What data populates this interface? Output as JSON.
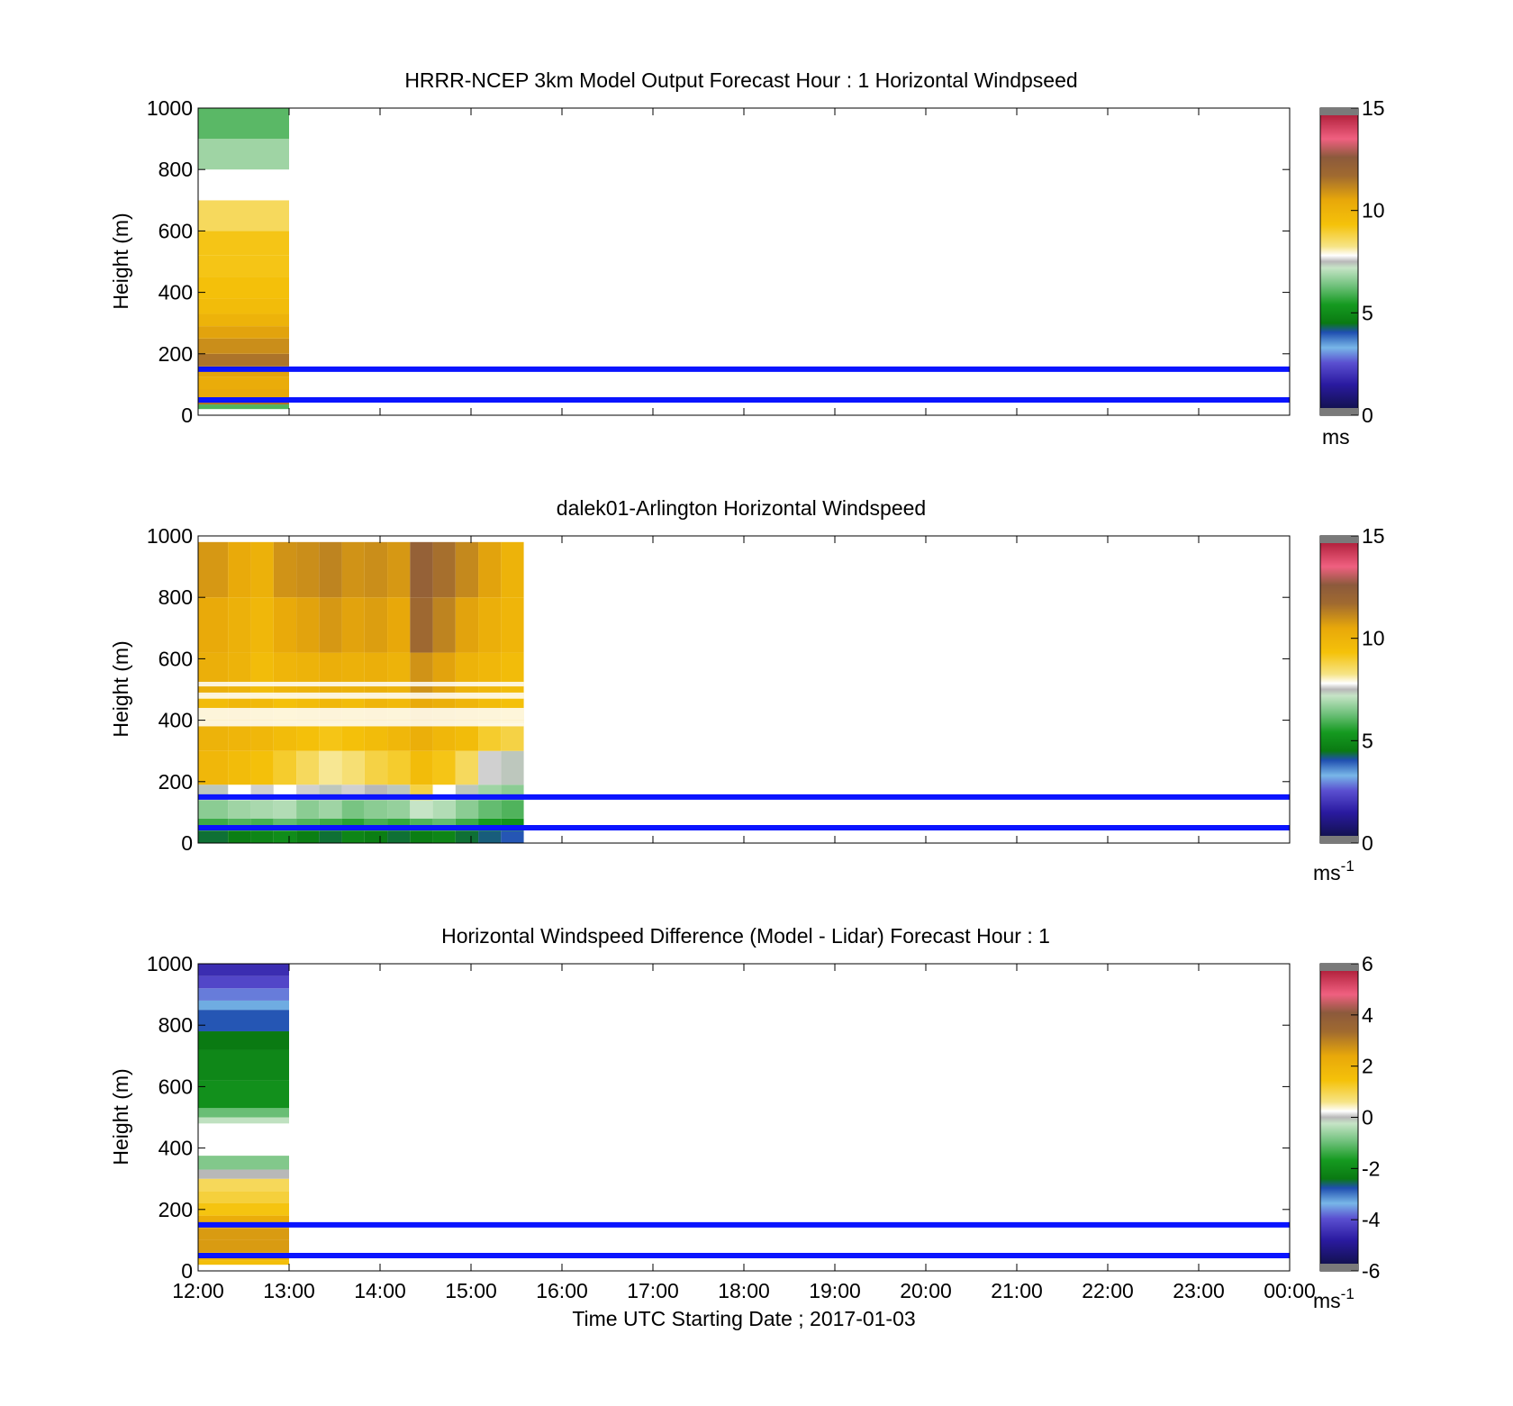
{
  "figure": {
    "xlabel": "Time UTC  Starting Date ; 2017-01-03",
    "x_ticks": [
      "12:00",
      "13:00",
      "14:00",
      "15:00",
      "16:00",
      "17:00",
      "18:00",
      "19:00",
      "20:00",
      "21:00",
      "22:00",
      "23:00",
      "00:00"
    ]
  },
  "chart_data": [
    {
      "type": "heatmap",
      "title": "HRRR-NCEP 3km Model Output   Forecast Hour : 1 Horizontal Windpseed",
      "ylabel": "Height (m)",
      "ylim": [
        0,
        1000
      ],
      "y_ticks": [
        "0",
        "200",
        "400",
        "600",
        "800",
        "1000"
      ],
      "x_range_hours": [
        12,
        24
      ],
      "colorbar": {
        "min": 0,
        "max": 15,
        "ticks": [
          "0",
          "5",
          "10",
          "15"
        ],
        "unit_label": "ms",
        "unit_sup": ""
      },
      "reference_lines_m": [
        50,
        150
      ],
      "columns": [
        {
          "t0": 12.0,
          "t1": 13.0,
          "profile": [
            [
              20,
              35,
              6.0
            ],
            [
              35,
              55,
              11.5
            ],
            [
              55,
              85,
              10.5
            ],
            [
              85,
              125,
              10.3
            ],
            [
              125,
              160,
              10.6
            ],
            [
              160,
              200,
              11.5
            ],
            [
              200,
              250,
              11.0
            ],
            [
              250,
              290,
              10.6
            ],
            [
              290,
              330,
              10.0
            ],
            [
              330,
              380,
              9.6
            ],
            [
              380,
              450,
              9.4
            ],
            [
              450,
              520,
              9.2
            ],
            [
              520,
              600,
              9.2
            ],
            [
              600,
              700,
              8.6
            ],
            [
              700,
              800,
              7.8
            ],
            [
              800,
              900,
              6.8
            ],
            [
              900,
              1000,
              6.1
            ]
          ]
        }
      ]
    },
    {
      "type": "heatmap",
      "title": "dalek01-Arlington  Horizontal Windspeed",
      "ylabel": "Height (m)",
      "ylim": [
        0,
        1000
      ],
      "y_ticks": [
        "0",
        "200",
        "400",
        "600",
        "800",
        "1000"
      ],
      "x_range_hours": [
        12,
        24
      ],
      "colorbar": {
        "min": 0,
        "max": 15,
        "ticks": [
          "0",
          "5",
          "10",
          "15"
        ],
        "unit_label": "ms",
        "unit_sup": "-1"
      },
      "reference_lines_m": [
        50,
        150
      ],
      "columns": [
        {
          "t0": 12.0,
          "t1": 12.33,
          "profile": [
            [
              0,
              40,
              4.4
            ],
            [
              40,
              80,
              5.8
            ],
            [
              80,
              140,
              6.6
            ],
            [
              140,
              190,
              7.4
            ],
            [
              190,
              300,
              9.8
            ],
            [
              300,
              390,
              10.0
            ],
            [
              390,
              480,
              9.6
            ],
            [
              480,
              620,
              10.2
            ],
            [
              620,
              800,
              10.4
            ],
            [
              800,
              980,
              10.8
            ]
          ]
        },
        {
          "t0": 12.33,
          "t1": 12.58,
          "profile": [
            [
              0,
              40,
              4.6
            ],
            [
              40,
              80,
              6.0
            ],
            [
              80,
              140,
              6.8
            ],
            [
              140,
              190,
              7.8
            ],
            [
              190,
              300,
              9.6
            ],
            [
              300,
              390,
              9.9
            ],
            [
              390,
              480,
              9.8
            ],
            [
              480,
              620,
              10.0
            ],
            [
              620,
              800,
              10.1
            ],
            [
              800,
              980,
              10.4
            ]
          ]
        },
        {
          "t0": 12.58,
          "t1": 12.83,
          "profile": [
            [
              0,
              40,
              4.8
            ],
            [
              40,
              80,
              5.9
            ],
            [
              80,
              140,
              6.9
            ],
            [
              140,
              190,
              7.6
            ],
            [
              190,
              300,
              9.4
            ],
            [
              300,
              390,
              9.8
            ],
            [
              390,
              480,
              9.7
            ],
            [
              480,
              620,
              9.6
            ],
            [
              620,
              800,
              9.8
            ],
            [
              800,
              980,
              10.1
            ]
          ]
        },
        {
          "t0": 12.83,
          "t1": 13.08,
          "profile": [
            [
              0,
              40,
              5.0
            ],
            [
              40,
              80,
              6.2
            ],
            [
              80,
              140,
              7.0
            ],
            [
              140,
              190,
              7.8
            ],
            [
              190,
              300,
              9.0
            ],
            [
              300,
              390,
              9.6
            ],
            [
              390,
              480,
              9.4
            ],
            [
              480,
              620,
              9.9
            ],
            [
              620,
              800,
              10.4
            ],
            [
              800,
              980,
              10.9
            ]
          ]
        },
        {
          "t0": 13.08,
          "t1": 13.33,
          "profile": [
            [
              0,
              40,
              4.6
            ],
            [
              40,
              80,
              6.0
            ],
            [
              80,
              140,
              6.6
            ],
            [
              140,
              190,
              7.6
            ],
            [
              190,
              300,
              8.6
            ],
            [
              300,
              390,
              9.4
            ],
            [
              390,
              480,
              9.6
            ],
            [
              480,
              620,
              10.0
            ],
            [
              620,
              800,
              10.6
            ],
            [
              800,
              980,
              11.0
            ]
          ]
        },
        {
          "t0": 13.33,
          "t1": 13.58,
          "profile": [
            [
              0,
              40,
              4.4
            ],
            [
              40,
              80,
              5.8
            ],
            [
              80,
              140,
              6.8
            ],
            [
              140,
              190,
              7.4
            ],
            [
              190,
              300,
              8.2
            ],
            [
              300,
              390,
              9.2
            ],
            [
              390,
              480,
              9.8
            ],
            [
              480,
              620,
              10.2
            ],
            [
              620,
              800,
              10.8
            ],
            [
              800,
              980,
              11.2
            ]
          ]
        },
        {
          "t0": 13.58,
          "t1": 13.83,
          "profile": [
            [
              0,
              40,
              4.8
            ],
            [
              40,
              80,
              5.6
            ],
            [
              80,
              140,
              6.4
            ],
            [
              140,
              190,
              7.6
            ],
            [
              190,
              300,
              8.4
            ],
            [
              300,
              390,
              9.4
            ],
            [
              390,
              480,
              9.6
            ],
            [
              480,
              620,
              10.1
            ],
            [
              620,
              800,
              10.6
            ],
            [
              800,
              980,
              10.9
            ]
          ]
        },
        {
          "t0": 13.83,
          "t1": 14.08,
          "profile": [
            [
              0,
              40,
              4.6
            ],
            [
              40,
              80,
              5.9
            ],
            [
              80,
              140,
              6.6
            ],
            [
              140,
              190,
              7.5
            ],
            [
              190,
              300,
              8.8
            ],
            [
              300,
              390,
              9.6
            ],
            [
              390,
              480,
              9.9
            ],
            [
              480,
              620,
              10.2
            ],
            [
              620,
              800,
              10.7
            ],
            [
              800,
              980,
              11.0
            ]
          ]
        },
        {
          "t0": 14.08,
          "t1": 14.33,
          "profile": [
            [
              0,
              40,
              4.4
            ],
            [
              40,
              80,
              5.7
            ],
            [
              80,
              140,
              6.7
            ],
            [
              140,
              190,
              7.4
            ],
            [
              190,
              300,
              9.0
            ],
            [
              300,
              390,
              9.8
            ],
            [
              390,
              480,
              9.7
            ],
            [
              480,
              620,
              10.0
            ],
            [
              620,
              800,
              10.5
            ],
            [
              800,
              980,
              10.8
            ]
          ]
        },
        {
          "t0": 14.33,
          "t1": 14.58,
          "profile": [
            [
              0,
              40,
              4.6
            ],
            [
              40,
              80,
              6.0
            ],
            [
              80,
              140,
              7.2
            ],
            [
              140,
              190,
              8.8
            ],
            [
              190,
              300,
              9.6
            ],
            [
              300,
              390,
              10.2
            ],
            [
              390,
              480,
              10.4
            ],
            [
              480,
              620,
              10.9
            ],
            [
              620,
              800,
              11.8
            ],
            [
              800,
              980,
              12.2
            ]
          ]
        },
        {
          "t0": 14.58,
          "t1": 14.83,
          "profile": [
            [
              0,
              40,
              4.8
            ],
            [
              40,
              80,
              6.2
            ],
            [
              80,
              140,
              7.0
            ],
            [
              140,
              190,
              7.8
            ],
            [
              190,
              300,
              9.2
            ],
            [
              300,
              390,
              9.8
            ],
            [
              390,
              480,
              10.2
            ],
            [
              480,
              620,
              10.6
            ],
            [
              620,
              800,
              11.2
            ],
            [
              800,
              980,
              11.6
            ]
          ]
        },
        {
          "t0": 14.83,
          "t1": 15.08,
          "profile": [
            [
              0,
              40,
              4.4
            ],
            [
              40,
              80,
              5.8
            ],
            [
              80,
              140,
              6.6
            ],
            [
              140,
              190,
              7.4
            ],
            [
              190,
              300,
              8.6
            ],
            [
              300,
              390,
              9.6
            ],
            [
              390,
              480,
              9.9
            ],
            [
              480,
              620,
              10.0
            ],
            [
              620,
              800,
              10.6
            ],
            [
              800,
              980,
              11.1
            ]
          ]
        },
        {
          "t0": 15.08,
          "t1": 15.33,
          "profile": [
            [
              0,
              40,
              4.2
            ],
            [
              40,
              80,
              5.4
            ],
            [
              80,
              140,
              6.2
            ],
            [
              140,
              190,
              6.8
            ],
            [
              190,
              300,
              7.6
            ],
            [
              300,
              390,
              9.0
            ],
            [
              390,
              480,
              9.6
            ],
            [
              480,
              620,
              9.8
            ],
            [
              620,
              800,
              10.2
            ],
            [
              800,
              980,
              10.6
            ]
          ]
        },
        {
          "t0": 15.33,
          "t1": 15.58,
          "profile": [
            [
              0,
              40,
              4.0
            ],
            [
              40,
              80,
              5.2
            ],
            [
              80,
              140,
              6.0
            ],
            [
              140,
              190,
              6.6
            ],
            [
              190,
              300,
              7.4
            ],
            [
              300,
              390,
              8.8
            ],
            [
              390,
              480,
              9.4
            ],
            [
              480,
              620,
              9.6
            ],
            [
              620,
              800,
              9.9
            ],
            [
              800,
              980,
              10.0
            ]
          ]
        }
      ],
      "missing_gaps_m": [
        [
          380,
          400
        ],
        [
          400,
          440
        ],
        [
          470,
          490
        ],
        [
          510,
          525
        ]
      ]
    },
    {
      "type": "heatmap",
      "title": "Horizontal Windspeed Difference (Model - Lidar) Forecast Hour : 1",
      "ylabel": "Height (m)",
      "ylim": [
        0,
        1000
      ],
      "y_ticks": [
        "0",
        "200",
        "400",
        "600",
        "800",
        "1000"
      ],
      "x_range_hours": [
        12,
        24
      ],
      "colorbar": {
        "min": -6,
        "max": 6,
        "ticks": [
          "-6",
          "-4",
          "-2",
          "0",
          "2",
          "4",
          "6"
        ],
        "unit_label": "ms",
        "unit_sup": "-1"
      },
      "reference_lines_m": [
        50,
        150
      ],
      "columns": [
        {
          "t0": 12.0,
          "t1": 13.0,
          "profile": [
            [
              20,
              35,
              1.6
            ],
            [
              35,
              60,
              2.0
            ],
            [
              60,
              100,
              2.6
            ],
            [
              100,
              140,
              2.6
            ],
            [
              140,
              180,
              2.2
            ],
            [
              180,
              220,
              1.4
            ],
            [
              220,
              260,
              1.1
            ],
            [
              260,
              300,
              0.9
            ],
            [
              300,
              330,
              0.0
            ],
            [
              330,
              375,
              -0.8
            ],
            [
              480,
              500,
              -0.3
            ],
            [
              500,
              530,
              -1.0
            ],
            [
              530,
              620,
              -1.9
            ],
            [
              620,
              720,
              -2.1
            ],
            [
              720,
              780,
              -2.4
            ],
            [
              780,
              850,
              -2.8
            ],
            [
              850,
              880,
              -3.3
            ],
            [
              880,
              920,
              -3.7
            ],
            [
              920,
              960,
              -4.1
            ],
            [
              960,
              1000,
              -4.5
            ]
          ]
        }
      ]
    }
  ]
}
